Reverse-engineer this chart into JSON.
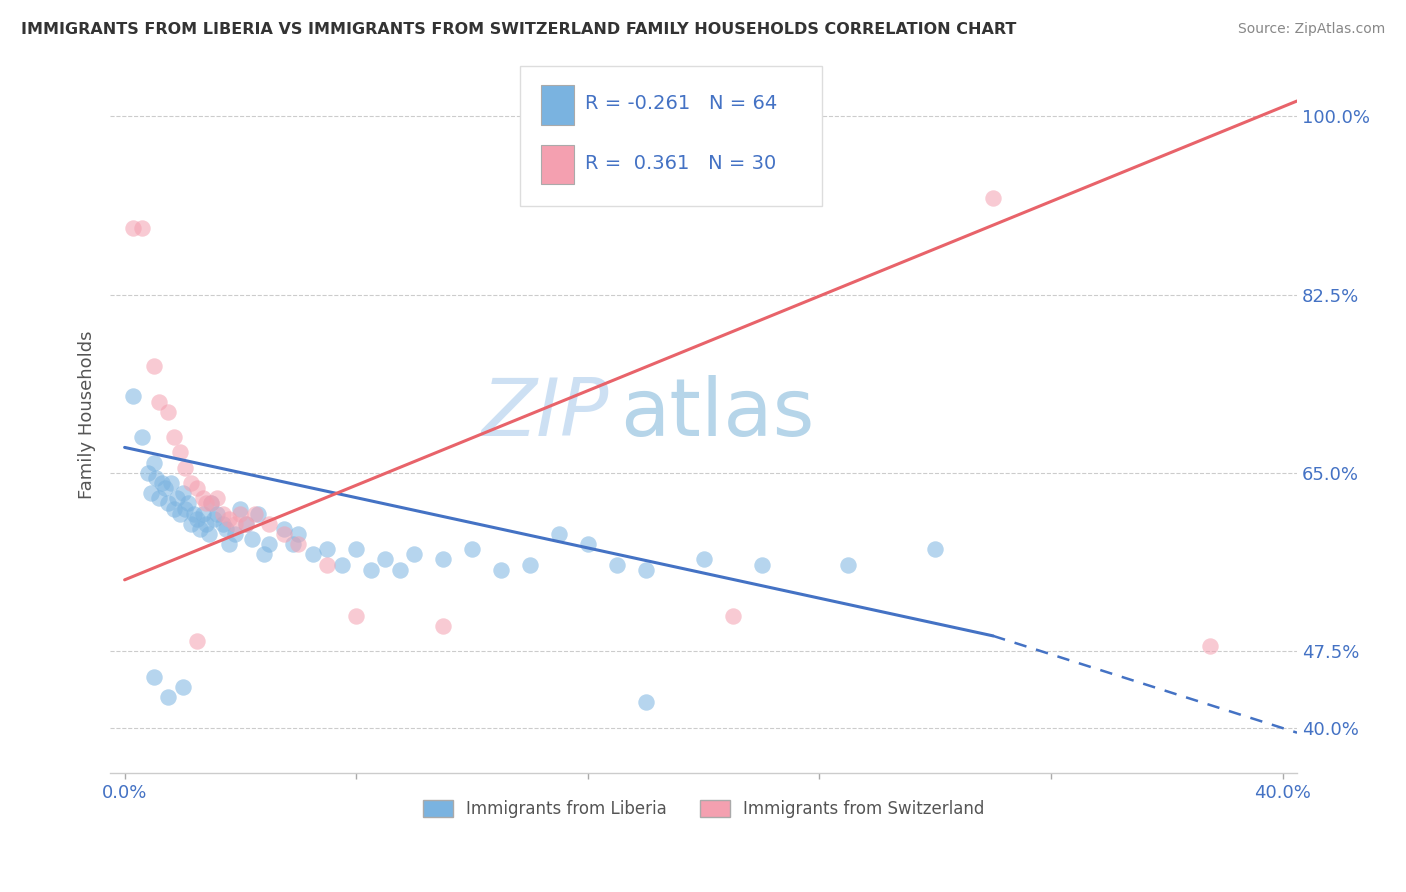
{
  "title": "IMMIGRANTS FROM LIBERIA VS IMMIGRANTS FROM SWITZERLAND FAMILY HOUSEHOLDS CORRELATION CHART",
  "source": "Source: ZipAtlas.com",
  "ylabel": "Family Households",
  "y_ticks": [
    "40.0%",
    "47.5%",
    "65.0%",
    "82.5%",
    "100.0%"
  ],
  "y_tick_vals": [
    0.4,
    0.475,
    0.65,
    0.825,
    1.0
  ],
  "x_tick_labels": [
    "0.0%",
    "",
    "",
    "",
    "",
    "40.0%"
  ],
  "x_tick_vals": [
    0.0,
    0.08,
    0.16,
    0.24,
    0.32,
    0.4
  ],
  "x_range": [
    -0.005,
    0.405
  ],
  "y_range": [
    0.355,
    1.06
  ],
  "legend_label_blue": "Immigrants from Liberia",
  "legend_label_pink": "Immigrants from Switzerland",
  "R_blue": -0.261,
  "N_blue": 64,
  "R_pink": 0.361,
  "N_pink": 30,
  "blue_color": "#7ab3e0",
  "pink_color": "#f4a0b0",
  "blue_line_color": "#4472C4",
  "pink_line_color": "#E8636A",
  "blue_line_solid": [
    [
      0.0,
      0.675
    ],
    [
      0.3,
      0.49
    ]
  ],
  "blue_line_dashed": [
    [
      0.3,
      0.49
    ],
    [
      0.405,
      0.395
    ]
  ],
  "pink_line": [
    [
      0.0,
      0.545
    ],
    [
      0.405,
      1.015
    ]
  ],
  "blue_scatter": [
    [
      0.003,
      0.725
    ],
    [
      0.006,
      0.685
    ],
    [
      0.008,
      0.65
    ],
    [
      0.009,
      0.63
    ],
    [
      0.01,
      0.66
    ],
    [
      0.011,
      0.645
    ],
    [
      0.012,
      0.625
    ],
    [
      0.013,
      0.64
    ],
    [
      0.014,
      0.635
    ],
    [
      0.015,
      0.62
    ],
    [
      0.016,
      0.64
    ],
    [
      0.017,
      0.615
    ],
    [
      0.018,
      0.625
    ],
    [
      0.019,
      0.61
    ],
    [
      0.02,
      0.63
    ],
    [
      0.021,
      0.615
    ],
    [
      0.022,
      0.62
    ],
    [
      0.023,
      0.6
    ],
    [
      0.024,
      0.61
    ],
    [
      0.025,
      0.605
    ],
    [
      0.026,
      0.595
    ],
    [
      0.027,
      0.61
    ],
    [
      0.028,
      0.6
    ],
    [
      0.029,
      0.59
    ],
    [
      0.03,
      0.62
    ],
    [
      0.031,
      0.605
    ],
    [
      0.032,
      0.61
    ],
    [
      0.034,
      0.6
    ],
    [
      0.035,
      0.595
    ],
    [
      0.036,
      0.58
    ],
    [
      0.038,
      0.59
    ],
    [
      0.04,
      0.615
    ],
    [
      0.042,
      0.6
    ],
    [
      0.044,
      0.585
    ],
    [
      0.046,
      0.61
    ],
    [
      0.048,
      0.57
    ],
    [
      0.05,
      0.58
    ],
    [
      0.055,
      0.595
    ],
    [
      0.058,
      0.58
    ],
    [
      0.06,
      0.59
    ],
    [
      0.065,
      0.57
    ],
    [
      0.07,
      0.575
    ],
    [
      0.075,
      0.56
    ],
    [
      0.08,
      0.575
    ],
    [
      0.085,
      0.555
    ],
    [
      0.09,
      0.565
    ],
    [
      0.095,
      0.555
    ],
    [
      0.1,
      0.57
    ],
    [
      0.11,
      0.565
    ],
    [
      0.12,
      0.575
    ],
    [
      0.13,
      0.555
    ],
    [
      0.14,
      0.56
    ],
    [
      0.15,
      0.59
    ],
    [
      0.16,
      0.58
    ],
    [
      0.17,
      0.56
    ],
    [
      0.18,
      0.555
    ],
    [
      0.2,
      0.565
    ],
    [
      0.22,
      0.56
    ],
    [
      0.25,
      0.56
    ],
    [
      0.28,
      0.575
    ],
    [
      0.01,
      0.45
    ],
    [
      0.015,
      0.43
    ],
    [
      0.18,
      0.425
    ],
    [
      0.02,
      0.44
    ]
  ],
  "pink_scatter": [
    [
      0.003,
      0.89
    ],
    [
      0.006,
      0.89
    ],
    [
      0.01,
      0.755
    ],
    [
      0.012,
      0.72
    ],
    [
      0.015,
      0.71
    ],
    [
      0.017,
      0.685
    ],
    [
      0.019,
      0.67
    ],
    [
      0.021,
      0.655
    ],
    [
      0.023,
      0.64
    ],
    [
      0.025,
      0.635
    ],
    [
      0.027,
      0.625
    ],
    [
      0.028,
      0.62
    ],
    [
      0.03,
      0.62
    ],
    [
      0.032,
      0.625
    ],
    [
      0.034,
      0.61
    ],
    [
      0.036,
      0.605
    ],
    [
      0.038,
      0.6
    ],
    [
      0.04,
      0.61
    ],
    [
      0.042,
      0.6
    ],
    [
      0.045,
      0.61
    ],
    [
      0.05,
      0.6
    ],
    [
      0.055,
      0.59
    ],
    [
      0.06,
      0.58
    ],
    [
      0.07,
      0.56
    ],
    [
      0.08,
      0.51
    ],
    [
      0.11,
      0.5
    ],
    [
      0.21,
      0.51
    ],
    [
      0.3,
      0.92
    ],
    [
      0.375,
      0.48
    ],
    [
      0.025,
      0.485
    ]
  ]
}
